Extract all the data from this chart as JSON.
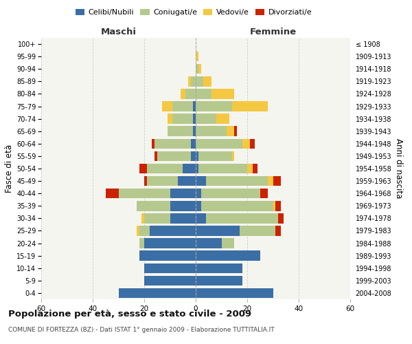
{
  "age_groups": [
    "0-4",
    "5-9",
    "10-14",
    "15-19",
    "20-24",
    "25-29",
    "30-34",
    "35-39",
    "40-44",
    "45-49",
    "50-54",
    "55-59",
    "60-64",
    "65-69",
    "70-74",
    "75-79",
    "80-84",
    "85-89",
    "90-94",
    "95-99",
    "100+"
  ],
  "birth_years": [
    "2004-2008",
    "1999-2003",
    "1994-1998",
    "1989-1993",
    "1984-1988",
    "1979-1983",
    "1974-1978",
    "1969-1973",
    "1964-1968",
    "1959-1963",
    "1954-1958",
    "1949-1953",
    "1944-1948",
    "1939-1943",
    "1934-1938",
    "1929-1933",
    "1924-1928",
    "1919-1923",
    "1914-1918",
    "1909-1913",
    "≤ 1908"
  ],
  "male_celibi": [
    30,
    20,
    20,
    22,
    20,
    18,
    10,
    10,
    10,
    7,
    5,
    2,
    2,
    1,
    1,
    1,
    0,
    0,
    0,
    0,
    0
  ],
  "male_coniugati": [
    0,
    0,
    0,
    0,
    2,
    4,
    10,
    13,
    20,
    12,
    14,
    13,
    14,
    10,
    8,
    8,
    4,
    2,
    0,
    0,
    0
  ],
  "male_vedovi": [
    0,
    0,
    0,
    0,
    0,
    1,
    1,
    0,
    0,
    0,
    0,
    0,
    0,
    0,
    2,
    4,
    2,
    1,
    0,
    0,
    0
  ],
  "male_divorziati": [
    0,
    0,
    0,
    0,
    0,
    0,
    0,
    0,
    5,
    1,
    3,
    1,
    1,
    0,
    0,
    0,
    0,
    0,
    0,
    0,
    0
  ],
  "female_nubili": [
    30,
    18,
    18,
    25,
    10,
    17,
    4,
    2,
    2,
    4,
    1,
    1,
    0,
    0,
    0,
    0,
    0,
    0,
    0,
    0,
    0
  ],
  "female_coniugate": [
    0,
    0,
    0,
    0,
    5,
    14,
    28,
    28,
    23,
    24,
    19,
    13,
    18,
    12,
    8,
    14,
    6,
    3,
    1,
    0,
    0
  ],
  "female_vedove": [
    0,
    0,
    0,
    0,
    0,
    0,
    0,
    1,
    0,
    2,
    2,
    1,
    3,
    3,
    5,
    14,
    9,
    3,
    1,
    1,
    0
  ],
  "female_divorziate": [
    0,
    0,
    0,
    0,
    0,
    2,
    2,
    2,
    3,
    3,
    2,
    0,
    2,
    1,
    0,
    0,
    0,
    0,
    0,
    0,
    0
  ],
  "color_celibi": "#3b6ea5",
  "color_coniugati": "#b5c98e",
  "color_vedovi": "#f5c842",
  "color_divorziati": "#cc2200",
  "bg_color": "#f5f5f0",
  "xlim": 60,
  "xticks": [
    -60,
    -40,
    -20,
    0,
    20,
    40,
    60
  ],
  "title": "Popolazione per età, sesso e stato civile - 2009",
  "subtitle": "COMUNE DI FORTEZZA (BZ) - Dati ISTAT 1° gennaio 2009 - Elaborazione TUTTITALIA.IT",
  "ylabel_left": "Fasce di età",
  "ylabel_right": "Anni di nascita",
  "header_maschi": "Maschi",
  "header_femmine": "Femmine",
  "legend_labels": [
    "Celibi/Nubili",
    "Coniugati/e",
    "Vedovi/e",
    "Divorziati/e"
  ]
}
